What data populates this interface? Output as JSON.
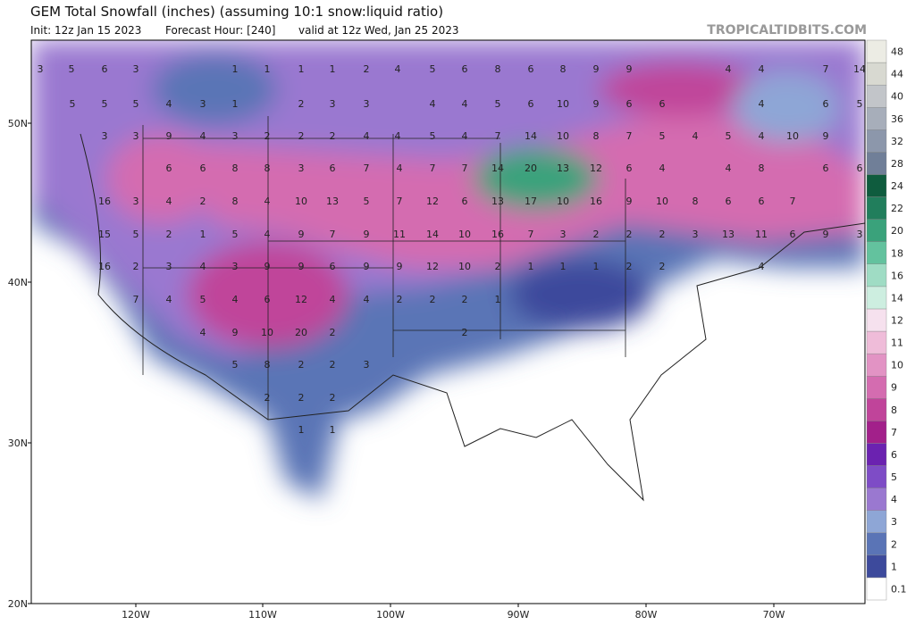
{
  "header": {
    "title": "GEM Total Snowfall (inches) (assuming 10:1 snow:liquid ratio)",
    "init": "Init: 12z Jan 15 2023",
    "forecast_hour": "Forecast Hour: [240]",
    "valid": "valid at 12z Wed, Jan 25 2023",
    "watermark": "TROPICALTIDBITS.COM"
  },
  "map": {
    "lat_labels": [
      "50N",
      "40N",
      "30N",
      "20N"
    ],
    "lon_labels": [
      "120W",
      "110W",
      "100W",
      "90W",
      "80W",
      "70W"
    ],
    "snowfall_labels": [
      3,
      5,
      6,
      3,
      1,
      1,
      1,
      1,
      2,
      4,
      5,
      6,
      8,
      6,
      8,
      9,
      9,
      4,
      4,
      7,
      14,
      5,
      5,
      5,
      4,
      3,
      1,
      2,
      3,
      3,
      4,
      4,
      5,
      6,
      10,
      9,
      6,
      6,
      4,
      6,
      5,
      3,
      3,
      9,
      4,
      3,
      2,
      2,
      2,
      4,
      4,
      5,
      4,
      7,
      14,
      10,
      8,
      7,
      5,
      4,
      5,
      4,
      10,
      9,
      6,
      6,
      8,
      8,
      3,
      6,
      7,
      4,
      7,
      7,
      14,
      20,
      13,
      12,
      6,
      4,
      4,
      8,
      6,
      6,
      16,
      3,
      4,
      2,
      8,
      4,
      10,
      13,
      5,
      7,
      12,
      6,
      13,
      17,
      10,
      16,
      9,
      10,
      8,
      6,
      6,
      7,
      15,
      5,
      2,
      1,
      5,
      4,
      9,
      7,
      9,
      11,
      14,
      10,
      16,
      7,
      3,
      2,
      2,
      2,
      3,
      13,
      11,
      6,
      9,
      3,
      16,
      2,
      3,
      4,
      3,
      9,
      9,
      6,
      9,
      9,
      12,
      10,
      2,
      1,
      1,
      1,
      2,
      2,
      4,
      7,
      4,
      5,
      4,
      6,
      12,
      4,
      4,
      2,
      2,
      2,
      1,
      4,
      9,
      10,
      20,
      2,
      2,
      5,
      8,
      2,
      2,
      3,
      2,
      2,
      2,
      1,
      1
    ]
  },
  "colorbar": {
    "levels": [
      0.1,
      1,
      2,
      3,
      4,
      5,
      6,
      7,
      8,
      9,
      10,
      11,
      12,
      14,
      16,
      18,
      20,
      22,
      24,
      28,
      32,
      36,
      40,
      44,
      48
    ],
    "colors": [
      "#ffffff",
      "#3d4a9c",
      "#5a74b6",
      "#8ea6d6",
      "#9a78d0",
      "#7e4cc6",
      "#6b22b0",
      "#a2208a",
      "#c0449a",
      "#d46cb0",
      "#e293c4",
      "#efbcd9",
      "#f6e1ee",
      "#cdeee0",
      "#9fdcc4",
      "#63c29e",
      "#3aa27b",
      "#217e5c",
      "#0f5c3e",
      "#707f98",
      "#8c97ab",
      "#a7aeba",
      "#c2c5c9",
      "#d8d9d1",
      "#ececE4"
    ]
  }
}
